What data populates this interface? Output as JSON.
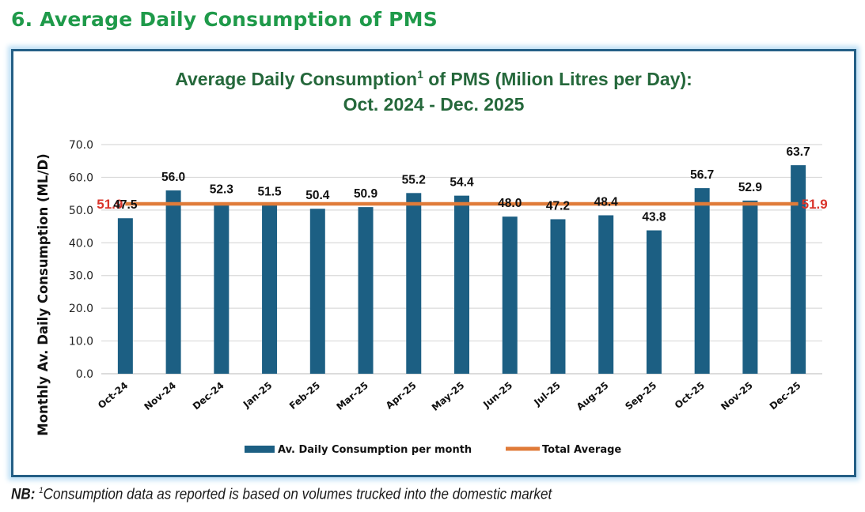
{
  "section_title": "6. Average Daily Consumption of PMS",
  "note": {
    "prefix": "NB:",
    "marker": "1",
    "text": "Consumption data as reported is based on volumes trucked into the domestic market"
  },
  "colors": {
    "section_title": "#1f9a4a",
    "chart_title": "#25683b",
    "bar": "#1c5f83",
    "average_line": "#e07b39",
    "average_label": "#d9342b",
    "frame_border": "#245f86"
  },
  "chart_data": {
    "type": "bar",
    "title_line1_before_sup": "Average Daily Consumption",
    "title_sup": "1",
    "title_line1_after_sup": " of PMS (Milion Litres per Day):",
    "title_line2": "Oct. 2024 -  Dec. 2025",
    "xlabel": "",
    "ylabel": "Monthly Av. Daily Consumption (ML/D)",
    "ylim": [
      0,
      70
    ],
    "yticks": [
      "0.0",
      "10.0",
      "20.0",
      "30.0",
      "40.0",
      "50.0",
      "60.0",
      "70.0"
    ],
    "grid": true,
    "categories": [
      "Oct-24",
      "Nov-24",
      "Dec-24",
      "Jan-25",
      "Feb-25",
      "Mar-25",
      "Apr-25",
      "May-25",
      "Jun-25",
      "Jul-25",
      "Aug-25",
      "Sep-25",
      "Oct-25",
      "Nov-25",
      "Dec-25"
    ],
    "series": [
      {
        "name": "Av. Daily Consumption per month",
        "type": "bar",
        "values": [
          47.5,
          56.0,
          52.3,
          51.5,
          50.4,
          50.9,
          55.2,
          54.4,
          48.0,
          47.2,
          48.4,
          43.8,
          56.7,
          52.9,
          63.7
        ],
        "labels": [
          "47.5",
          "56.0",
          "52.3",
          "51.5",
          "50.4",
          "50.9",
          "55.2",
          "54.4",
          "48.0",
          "47.2",
          "48.4",
          "43.8",
          "56.7",
          "52.9",
          "63.7"
        ]
      },
      {
        "name": "Total Average",
        "type": "line",
        "value": 51.9,
        "label": "51.9"
      }
    ],
    "legend_position": "bottom"
  }
}
